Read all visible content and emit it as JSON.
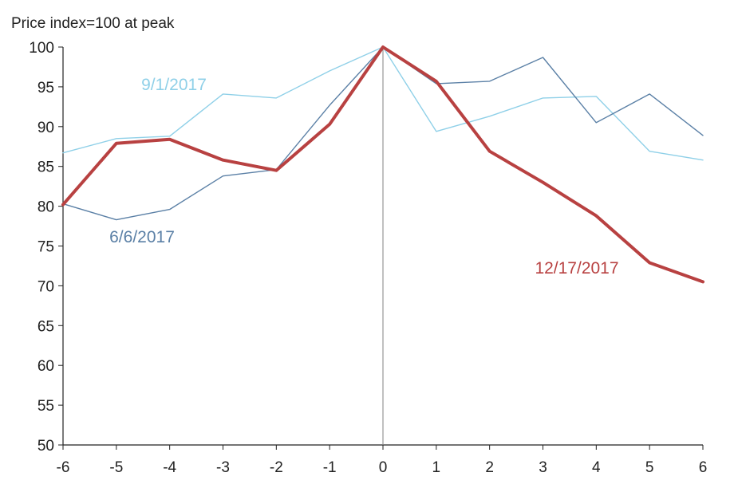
{
  "chart_data": {
    "type": "line",
    "title": "",
    "ylabel": "Price index=100 at peak",
    "xlabel": "",
    "x": [
      -6,
      -5,
      -4,
      -3,
      -2,
      -1,
      0,
      1,
      2,
      3,
      4,
      5,
      6
    ],
    "xlim": [
      -6,
      6
    ],
    "ylim": [
      50,
      100
    ],
    "x_ticks": [
      -6,
      -5,
      -4,
      -3,
      -2,
      -1,
      0,
      1,
      2,
      3,
      4,
      5,
      6
    ],
    "y_ticks": [
      50,
      55,
      60,
      65,
      70,
      75,
      80,
      85,
      90,
      95,
      100
    ],
    "grid": false,
    "reference_line": {
      "x": 0,
      "color": "#808080"
    },
    "series": [
      {
        "name": "9/1/2017",
        "color": "#8fd0e8",
        "values": [
          86.7,
          88.5,
          88.8,
          94.1,
          93.6,
          97.0,
          100,
          89.4,
          91.3,
          93.6,
          93.8,
          86.9,
          85.8
        ]
      },
      {
        "name": "6/6/2017",
        "color": "#5b80a6",
        "values": [
          80.3,
          78.3,
          79.6,
          83.8,
          84.6,
          92.7,
          100,
          95.4,
          95.7,
          98.7,
          90.5,
          94.1,
          88.9
        ]
      },
      {
        "name": "12/17/2017",
        "color": "#b84141",
        "values": [
          80.2,
          87.9,
          88.4,
          85.8,
          84.5,
          90.3,
          100,
          95.7,
          86.9,
          83.0,
          78.8,
          72.9,
          70.5
        ]
      }
    ],
    "labels": [
      {
        "text": "9/1/2017",
        "series": 0
      },
      {
        "text": "6/6/2017",
        "series": 1
      },
      {
        "text": "12/17/2017",
        "series": 2
      }
    ]
  }
}
